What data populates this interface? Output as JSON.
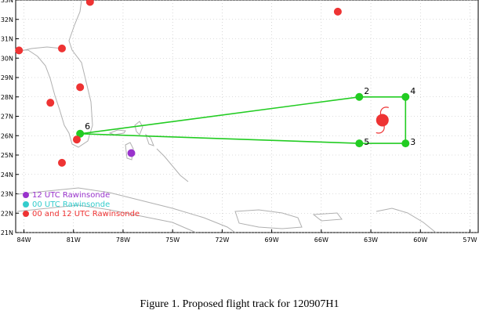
{
  "map": {
    "lat_labels": [
      "21N",
      "22N",
      "23N",
      "24N",
      "25N",
      "26N",
      "27N",
      "28N",
      "29N",
      "30N",
      "31N",
      "32N",
      "33N"
    ],
    "lat_values": [
      21,
      22,
      23,
      24,
      25,
      26,
      27,
      28,
      29,
      30,
      31,
      32,
      33
    ],
    "lon_labels": [
      "84W",
      "81W",
      "78W",
      "75W",
      "72W",
      "69W",
      "66W",
      "63W",
      "60W",
      "57W"
    ],
    "lon_values": [
      -84,
      -81,
      -78,
      -75,
      -72,
      -69,
      -66,
      -63,
      -60,
      -57
    ],
    "lon_range": [
      -84.5,
      -56.5
    ],
    "lat_range": [
      21,
      33
    ],
    "colors": {
      "track": "#22cc22",
      "waypoint": "#22cc22",
      "rawinsonde_12": "#9933cc",
      "rawinsonde_00": "#33cccc",
      "rawinsonde_both": "#ee3333",
      "storm": "#ee3333",
      "coast": "#b0b0b0",
      "grid": "#bbbbbb"
    },
    "track": [
      {
        "label": "6",
        "lon": -80.6,
        "lat": 26.1
      },
      {
        "label": "2",
        "lon": -63.7,
        "lat": 28.0
      },
      {
        "label": "4",
        "lon": -60.9,
        "lat": 28.0
      },
      {
        "label": "3",
        "lon": -60.9,
        "lat": 25.6
      },
      {
        "label": "5",
        "lon": -63.7,
        "lat": 25.6
      },
      {
        "label": "6",
        "lon": -80.6,
        "lat": 26.1
      }
    ],
    "storm_center": {
      "lon": -62.3,
      "lat": 26.8
    },
    "stations": [
      {
        "lon": -80.0,
        "lat": 32.9,
        "type": "both"
      },
      {
        "lon": -65.0,
        "lat": 32.4,
        "type": "both"
      },
      {
        "lon": -84.3,
        "lat": 30.4,
        "type": "both"
      },
      {
        "lon": -81.7,
        "lat": 30.5,
        "type": "both"
      },
      {
        "lon": -80.6,
        "lat": 28.5,
        "type": "both"
      },
      {
        "lon": -82.4,
        "lat": 27.7,
        "type": "both"
      },
      {
        "lon": -80.8,
        "lat": 25.8,
        "type": "both"
      },
      {
        "lon": -81.7,
        "lat": 24.6,
        "type": "both"
      },
      {
        "lon": -77.5,
        "lat": 25.1,
        "type": "12"
      }
    ],
    "legend": [
      {
        "label": "12 UTC Rawinsonde",
        "type": "12"
      },
      {
        "label": "00 UTC Rawinsonde",
        "type": "00"
      },
      {
        "label": "00 and 12 UTC Rawinsonde",
        "type": "both"
      }
    ]
  },
  "caption": "Figure 1. Proposed flight track for 120907H1"
}
